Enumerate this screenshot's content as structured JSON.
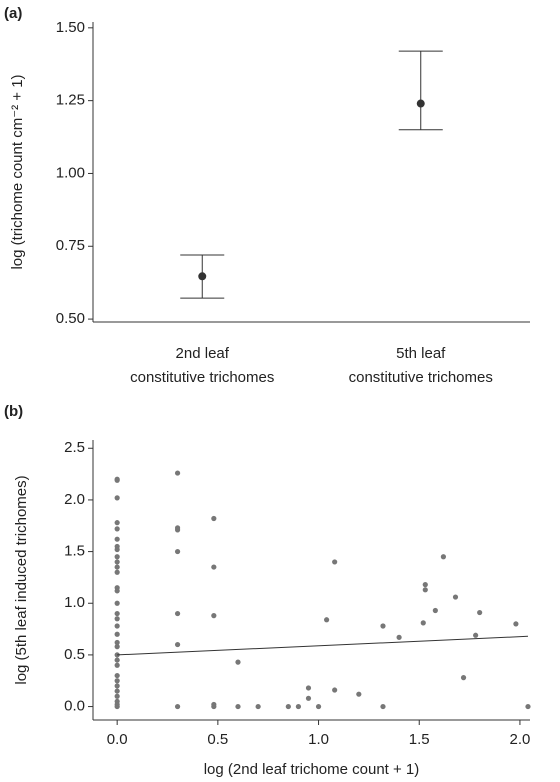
{
  "chart_data": [
    {
      "type": "errorbar",
      "panel": "(a)",
      "ylabel": "log (trichome count cm⁻² + 1)",
      "categories": [
        [
          "2nd leaf",
          "constitutive trichomes"
        ],
        [
          "5th leaf",
          "constitutive trichomes"
        ]
      ],
      "values": [
        0.647,
        1.24
      ],
      "lower": [
        0.572,
        1.15
      ],
      "upper": [
        0.72,
        1.42
      ],
      "color": "#333333",
      "ylim": [
        0.49,
        1.52
      ],
      "yticks": [
        {
          "value": 0.5,
          "label": "0.50"
        },
        {
          "value": 0.75,
          "label": "0.75"
        },
        {
          "value": 1.0,
          "label": "1.00"
        },
        {
          "value": 1.25,
          "label": "1.25"
        },
        {
          "value": 1.5,
          "label": "1.50"
        }
      ]
    },
    {
      "type": "scatter",
      "panel": "(b)",
      "ylabel": "log (5th leaf induced trichomes)",
      "xlabel": "log (2nd leaf trichome count + 1)",
      "color": "#777777",
      "line_color": "#333333",
      "x": [
        0,
        0,
        0,
        0,
        0,
        0,
        0,
        0,
        0,
        0,
        0,
        0,
        0,
        0,
        0,
        0,
        0,
        0,
        0,
        0,
        0,
        0,
        0,
        0,
        0,
        0,
        0,
        0,
        0,
        0,
        0,
        0,
        0.3,
        0.3,
        0.3,
        0.3,
        0.3,
        0.3,
        0.3,
        0.48,
        0.48,
        0.48,
        0.48,
        0.48,
        0.6,
        0.6,
        0.7,
        0.85,
        0.9,
        0.95,
        0.95,
        1.0,
        1.04,
        1.08,
        1.08,
        1.2,
        1.32,
        1.32,
        1.4,
        1.52,
        1.53,
        1.53,
        1.58,
        1.62,
        1.68,
        1.72,
        1.78,
        1.8,
        1.98,
        2.04
      ],
      "y": [
        2.2,
        2.19,
        2.02,
        1.78,
        1.72,
        1.62,
        1.55,
        1.52,
        1.45,
        1.4,
        1.35,
        1.3,
        1.15,
        1.12,
        1.0,
        0.9,
        0.85,
        0.78,
        0.7,
        0.62,
        0.58,
        0.5,
        0.45,
        0.4,
        0.3,
        0.25,
        0.2,
        0.15,
        0.1,
        0.05,
        0.02,
        0.0,
        2.26,
        1.73,
        1.71,
        1.5,
        0.9,
        0.6,
        0.0,
        1.82,
        1.35,
        0.88,
        0.02,
        0.0,
        0.43,
        0.0,
        0.0,
        0.0,
        0.0,
        0.18,
        0.08,
        0.0,
        0.84,
        1.4,
        0.16,
        0.12,
        0.78,
        0.0,
        0.67,
        0.81,
        1.18,
        1.13,
        0.93,
        1.45,
        1.06,
        0.28,
        0.69,
        0.91,
        0.8,
        0.0
      ],
      "trend": {
        "x": [
          0,
          2.04
        ],
        "y": [
          0.5,
          0.68
        ]
      },
      "xlim": [
        -0.12,
        2.05
      ],
      "ylim": [
        -0.13,
        2.58
      ],
      "xticks": [
        {
          "value": 0,
          "label": "0.0"
        },
        {
          "value": 0.5,
          "label": "0.5"
        },
        {
          "value": 1,
          "label": "1.0"
        },
        {
          "value": 1.5,
          "label": "1.5"
        },
        {
          "value": 2,
          "label": "2.0"
        }
      ],
      "yticks": [
        {
          "value": 0,
          "label": "0.0"
        },
        {
          "value": 0.5,
          "label": "0.5"
        },
        {
          "value": 1,
          "label": "1.0"
        },
        {
          "value": 1.5,
          "label": "1.5"
        },
        {
          "value": 2,
          "label": "2.0"
        },
        {
          "value": 2.5,
          "label": "2.5"
        }
      ]
    }
  ]
}
